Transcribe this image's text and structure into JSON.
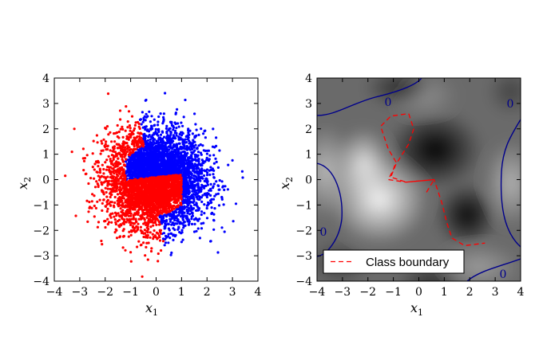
{
  "chart_data": [
    {
      "type": "scatter",
      "xlabel": "x",
      "xlabel_sub": "1",
      "ylabel": "x",
      "ylabel_sub": "2",
      "xlim": [
        -4,
        4
      ],
      "ylim": [
        -4,
        4
      ],
      "xticks": [
        "−4",
        "−3",
        "−2",
        "−1",
        "0",
        "1",
        "2",
        "3",
        "4"
      ],
      "yticks": [
        "−4",
        "−3",
        "−2",
        "−1",
        "0",
        "1",
        "2",
        "3",
        "4"
      ],
      "grid": false,
      "colors": {
        "class_a": "#ff0000",
        "class_b": "#0000ff"
      },
      "series": [
        {
          "color": "#0000ff",
          "approx_points": 2500,
          "region": "upper-right half-moon (x1 + x2 sign rule)"
        },
        {
          "color": "#ff0000",
          "approx_points": 2500,
          "region": "lower-left half-moon"
        }
      ]
    },
    {
      "type": "heatmap",
      "colormap": "grayscale",
      "xlabel": "x",
      "xlabel_sub": "1",
      "ylabel": "x",
      "ylabel_sub": "2",
      "xlim": [
        -4,
        4
      ],
      "ylim": [
        -4,
        4
      ],
      "xticks": [
        "−4",
        "−3",
        "−2",
        "−1",
        "0",
        "1",
        "2",
        "3",
        "4"
      ],
      "yticks": [
        "−4",
        "−3",
        "−2",
        "−1",
        "0",
        "1",
        "2",
        "3",
        "4"
      ],
      "bright_peaks": [
        [
          -1.3,
          -0.5
        ],
        [
          -3.3,
          0.5
        ],
        [
          3.3,
          -0.5
        ]
      ],
      "dark_peaks": [
        [
          0.6,
          1.2
        ],
        [
          1.8,
          -1.5
        ],
        [
          -0.8,
          3.5
        ],
        [
          0.6,
          -3.5
        ]
      ],
      "contour_level": "0",
      "contour_color": "#00008b",
      "contour_labels": [
        "0",
        "0",
        "0",
        "0"
      ],
      "boundary_color": "#ff0000",
      "boundary_path": [
        [
          0.3,
          -0.5
        ],
        [
          0.6,
          0.0
        ],
        [
          -0.5,
          -0.1
        ],
        [
          -1.2,
          0.0
        ],
        [
          -1.0,
          0.4
        ],
        [
          -0.9,
          0.7
        ],
        [
          -1.2,
          1.2
        ],
        [
          -1.5,
          2.1
        ],
        [
          -1.1,
          2.5
        ],
        [
          -0.4,
          2.6
        ],
        [
          -0.3,
          2.3
        ],
        [
          -0.2,
          2.0
        ],
        [
          -0.4,
          1.4
        ],
        [
          -0.9,
          0.6
        ],
        [
          -1.1,
          0.1
        ],
        [
          -0.5,
          -0.1
        ],
        [
          0.6,
          0.0
        ],
        [
          0.9,
          -0.9
        ],
        [
          1.1,
          -1.7
        ],
        [
          1.3,
          -2.3
        ],
        [
          1.8,
          -2.6
        ],
        [
          2.6,
          -2.5
        ]
      ],
      "legend": {
        "label": "Class boundary",
        "position": "lower-right"
      }
    }
  ]
}
